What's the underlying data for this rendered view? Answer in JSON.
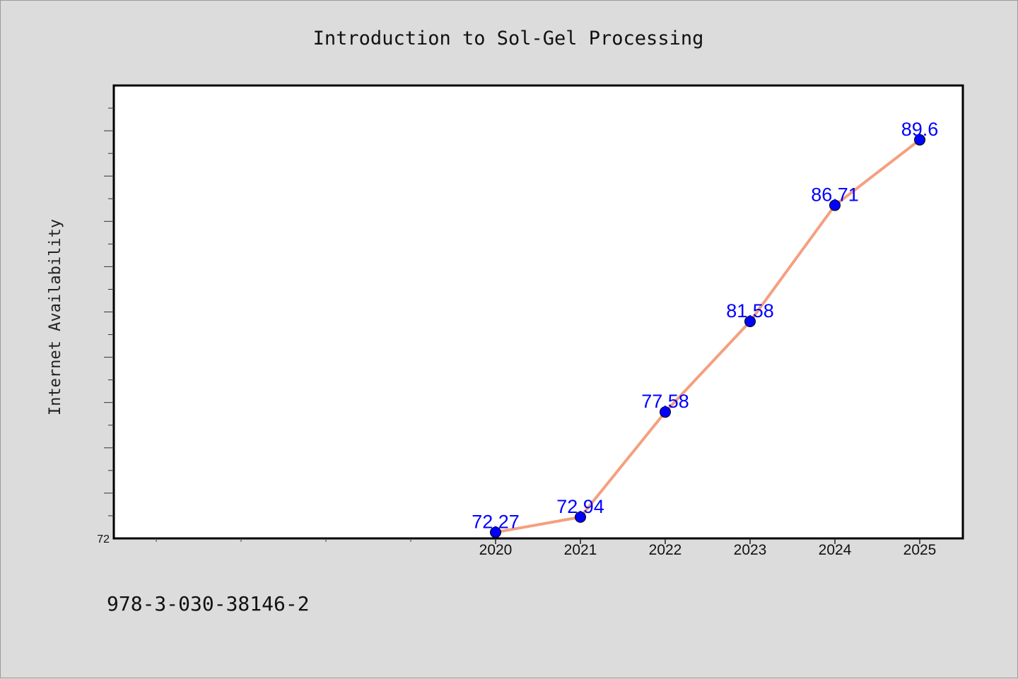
{
  "chart_data": {
    "type": "line",
    "title": "Introduction to Sol-Gel Processing",
    "xlabel": "",
    "ylabel": "Internet Availability",
    "categories": [
      "2020",
      "2021",
      "2022",
      "2023",
      "2024",
      "2025"
    ],
    "series": [
      {
        "values": [
          72.27,
          72.94,
          77.58,
          81.58,
          86.71,
          89.6
        ],
        "labels": [
          "72.27",
          "72.94",
          "77.58",
          "81.58",
          "86.71",
          "89.6"
        ],
        "line_color": "#f4a07f",
        "marker_color": "#0000ff"
      }
    ],
    "yticks": [
      "72"
    ],
    "ylim": [
      72,
      92
    ],
    "grid": false,
    "legend": "none",
    "background": "#ffffff",
    "figure_background": "#dcdcdc"
  },
  "footnote": "978-3-030-38146-2"
}
